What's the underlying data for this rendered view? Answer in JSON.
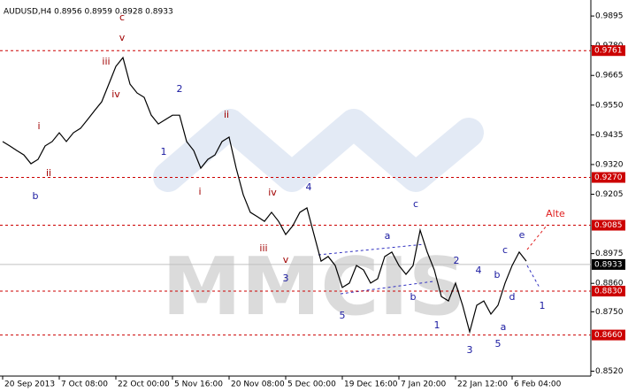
{
  "chart_data": {
    "type": "line",
    "title": "AUDUSD,H4  0.8956 0.8959 0.8928 0.8933",
    "watermark": "MMCIS",
    "color": "#000000",
    "categories": [
      "20 Sep 2013",
      null,
      null,
      null,
      null,
      null,
      null,
      null,
      "7 Oct 08:00",
      null,
      null,
      null,
      null,
      null,
      null,
      null,
      "22 Oct 00:00",
      null,
      null,
      null,
      null,
      null,
      null,
      null,
      "5 Nov 16:00",
      null,
      null,
      null,
      null,
      null,
      null,
      null,
      "20 Nov 08:00",
      null,
      null,
      null,
      null,
      null,
      null,
      null,
      "5 Dec 00:00",
      null,
      null,
      null,
      null,
      null,
      null,
      null,
      "19 Dec 16:00",
      null,
      null,
      null,
      null,
      null,
      null,
      null,
      "7 Jan 20:00",
      null,
      null,
      null,
      null,
      null,
      null,
      null,
      "22 Jan 12:00",
      null,
      null,
      null,
      null,
      null,
      null,
      null,
      "6 Feb 04:00",
      null,
      null
    ],
    "values": [
      0.9409,
      0.9392,
      0.9374,
      0.9357,
      0.9323,
      0.934,
      0.9392,
      0.9409,
      0.9443,
      0.9409,
      0.9443,
      0.946,
      0.9494,
      0.9529,
      0.9563,
      0.9631,
      0.97,
      0.9734,
      0.9631,
      0.9597,
      0.958,
      0.9511,
      0.9477,
      0.9494,
      0.9511,
      0.9511,
      0.9409,
      0.9374,
      0.9306,
      0.934,
      0.9357,
      0.9409,
      0.9426,
      0.9306,
      0.9203,
      0.9135,
      0.9118,
      0.91,
      0.9135,
      0.91,
      0.9049,
      0.9083,
      0.9135,
      0.9152,
      0.9049,
      0.8946,
      0.8964,
      0.8929,
      0.8844,
      0.8861,
      0.8929,
      0.8912,
      0.8861,
      0.8878,
      0.8964,
      0.8981,
      0.8929,
      0.8895,
      0.8929,
      0.9066,
      0.8981,
      0.8912,
      0.8809,
      0.8792,
      0.8861,
      0.8775,
      0.8672,
      0.8775,
      0.8792,
      0.8741,
      0.8775,
      0.8861,
      0.8929,
      0.8981,
      0.8946
    ],
    "ylim": [
      0.8501,
      0.9957
    ],
    "yticks": [
      0.9895,
      {
        "value": 0.978,
        "label": "0.9780"
      },
      0.9665,
      {
        "value": 0.955,
        "label": "0.9550"
      },
      0.9435,
      {
        "value": 0.932,
        "label": "0.9320"
      },
      0.9205,
      0.8975,
      {
        "value": 0.886,
        "label": "0.8860"
      },
      {
        "value": 0.875,
        "label": "0.8750"
      },
      {
        "value": 0.852,
        "label": "0.8520"
      }
    ],
    "levels": [
      {
        "value": 0.9761,
        "label": "0.9761"
      },
      {
        "value": 0.927,
        "label": "0.9270"
      },
      {
        "value": 0.9085,
        "label": "0.9085"
      },
      {
        "value": 0.883,
        "label": "0.8830"
      },
      {
        "value": 0.866,
        "label": "0.8660"
      }
    ],
    "level_color": "#cc0000",
    "current_price": {
      "value": 0.8933,
      "label": "0.8933"
    },
    "annotations": [
      {
        "text": "c",
        "color": "#a00000"
      },
      {
        "text": "v",
        "color": "#a00000"
      },
      {
        "text": "iii",
        "color": "#a00000"
      },
      {
        "text": "iv",
        "color": "#a00000"
      },
      {
        "text": "i",
        "color": "#a00000"
      },
      {
        "text": "ii",
        "color": "#a00000"
      },
      {
        "text": "b",
        "color": "#1a1aa0"
      },
      {
        "text": "2",
        "color": "#1a1aa0"
      },
      {
        "text": "1",
        "color": "#1a1aa0"
      },
      {
        "text": "ii",
        "color": "#a00000"
      },
      {
        "text": "i",
        "color": "#a00000"
      },
      {
        "text": "iv",
        "color": "#a00000"
      },
      {
        "text": "4",
        "color": "#1a1aa0"
      },
      {
        "text": "iii",
        "color": "#a00000"
      },
      {
        "text": "v",
        "color": "#a00000"
      },
      {
        "text": "3",
        "color": "#1a1aa0"
      },
      {
        "text": "5",
        "color": "#1a1aa0"
      },
      {
        "text": "a",
        "color": "#1a1aa0"
      },
      {
        "text": "b",
        "color": "#1a1aa0"
      },
      {
        "text": "c",
        "color": "#1a1aa0"
      },
      {
        "text": "1",
        "color": "#1a1aa0"
      },
      {
        "text": "2",
        "color": "#1a1aa0"
      },
      {
        "text": "3",
        "color": "#1a1aa0"
      },
      {
        "text": "4",
        "color": "#1a1aa0"
      },
      {
        "text": "5",
        "color": "#1a1aa0"
      },
      {
        "text": "a",
        "color": "#1a1aa0"
      },
      {
        "text": "b",
        "color": "#1a1aa0"
      },
      {
        "text": "c",
        "color": "#1a1aa0"
      },
      {
        "text": "d",
        "color": "#1a1aa0"
      },
      {
        "text": "e",
        "color": "#1a1aa0"
      },
      {
        "text": "1",
        "color": "#1a1aa0"
      },
      {
        "text": "Alte",
        "color": "#e02020"
      }
    ]
  }
}
